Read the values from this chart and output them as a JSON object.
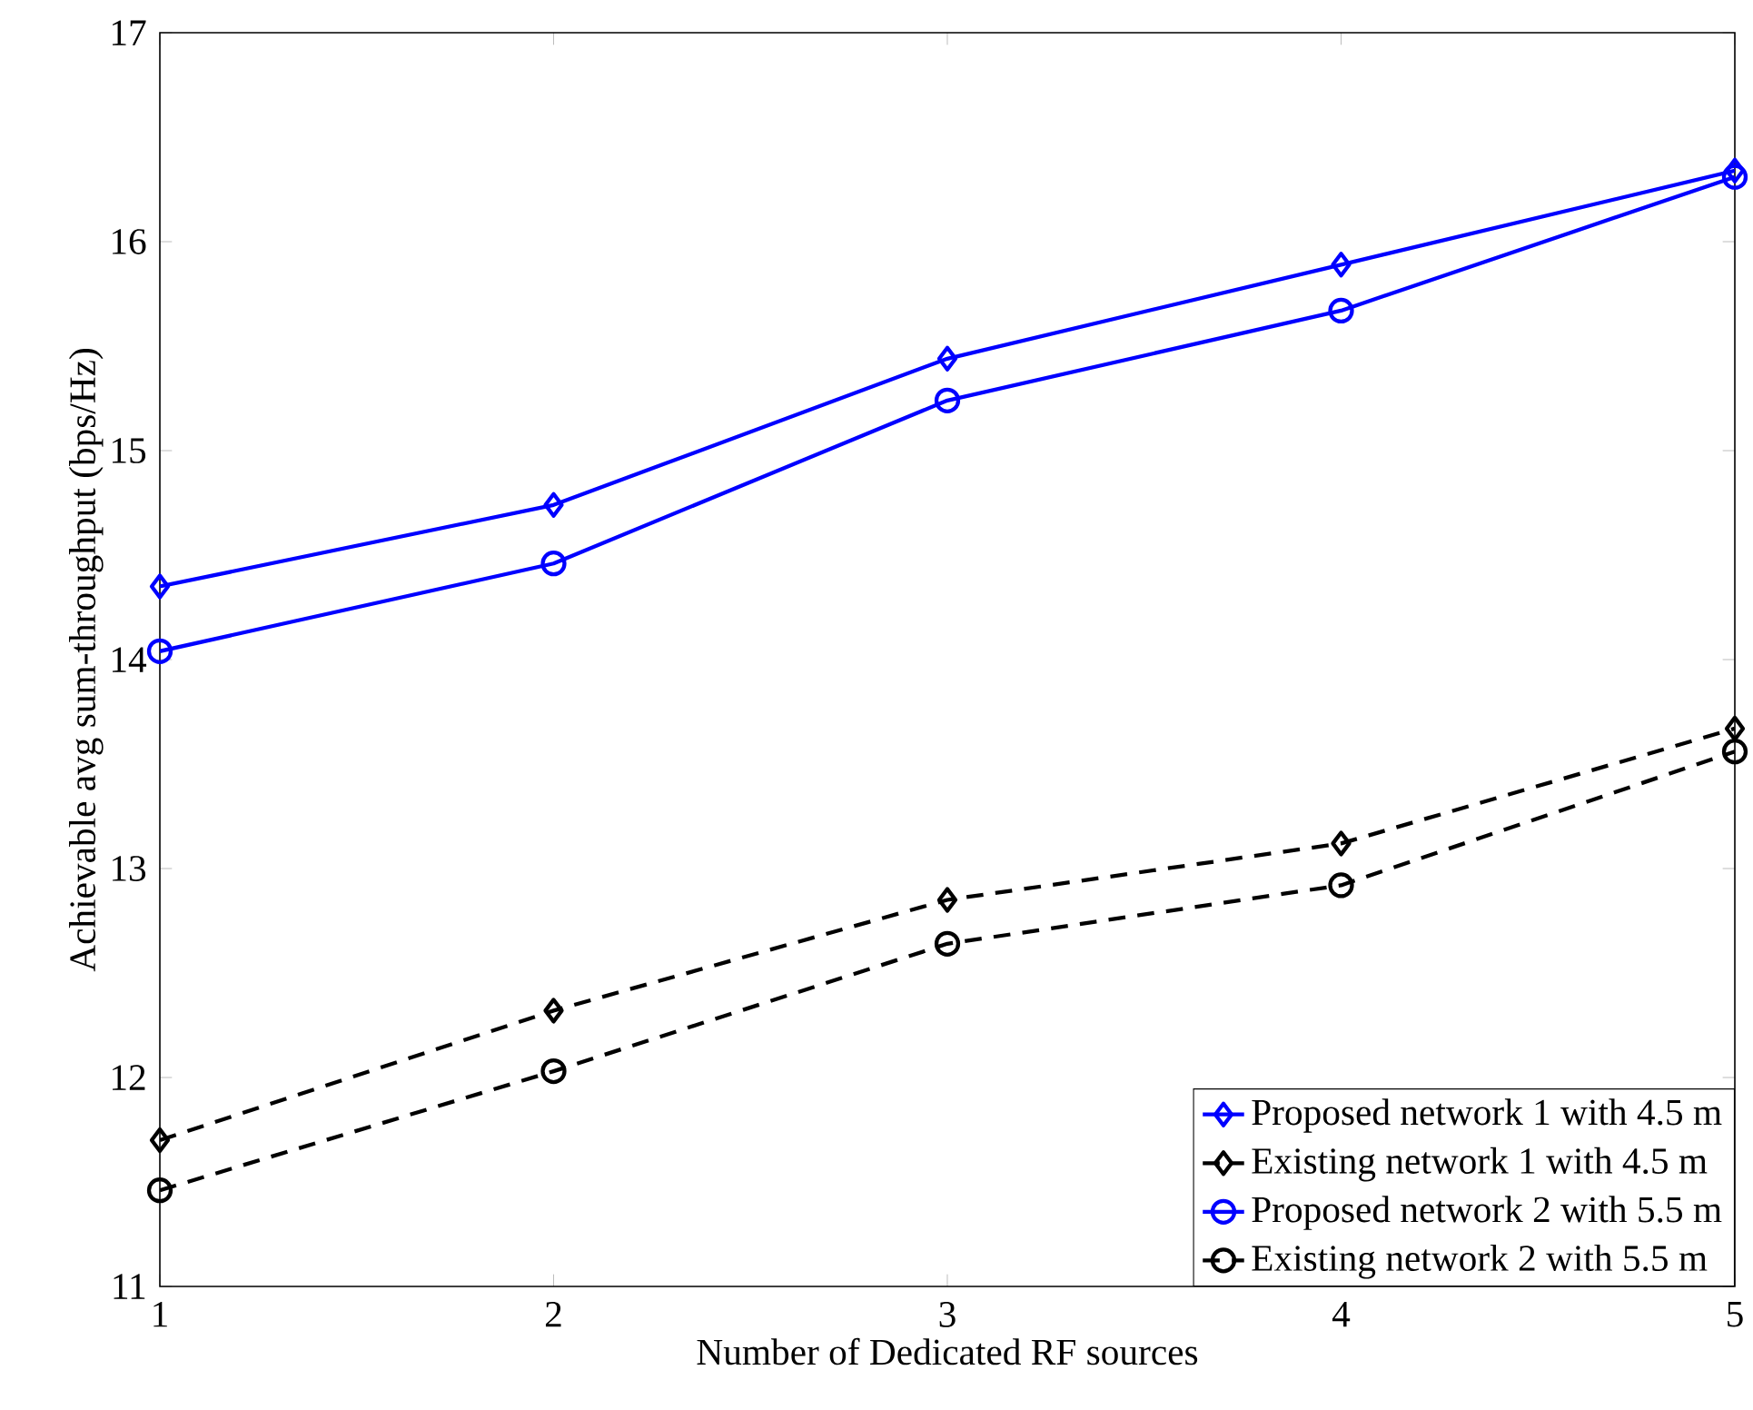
{
  "chart_data": {
    "type": "line",
    "xlabel": "Number of Dedicated RF sources",
    "ylabel": "Achievable avg sum-throughput (bps/Hz)",
    "x": [
      1,
      2,
      3,
      4,
      5
    ],
    "series": [
      {
        "name": "Proposed network 1 with 4.5 m",
        "color": "#0000ff",
        "marker": "diamond",
        "line_style": "solid",
        "values": [
          14.35,
          14.74,
          15.44,
          15.89,
          16.34
        ]
      },
      {
        "name": "Existing network 1 with 4.5 m",
        "color": "#000000",
        "marker": "diamond",
        "line_style": "dashed",
        "values": [
          11.7,
          12.32,
          12.85,
          13.12,
          13.67
        ]
      },
      {
        "name": "Proposed network 2 with 5.5 m",
        "color": "#0000ff",
        "marker": "circle",
        "line_style": "solid",
        "values": [
          14.04,
          14.46,
          15.24,
          15.67,
          16.31
        ]
      },
      {
        "name": "Existing network 2 with 5.5 m",
        "color": "#000000",
        "marker": "circle",
        "line_style": "dashed",
        "values": [
          11.46,
          12.03,
          12.64,
          12.92,
          13.56
        ]
      }
    ],
    "xlim": [
      1,
      5
    ],
    "ylim": [
      11,
      17
    ],
    "xticks": [
      1,
      2,
      3,
      4,
      5
    ],
    "yticks": [
      11,
      12,
      13,
      14,
      15,
      16,
      17
    ],
    "grid": false,
    "legend": "bottom right"
  }
}
